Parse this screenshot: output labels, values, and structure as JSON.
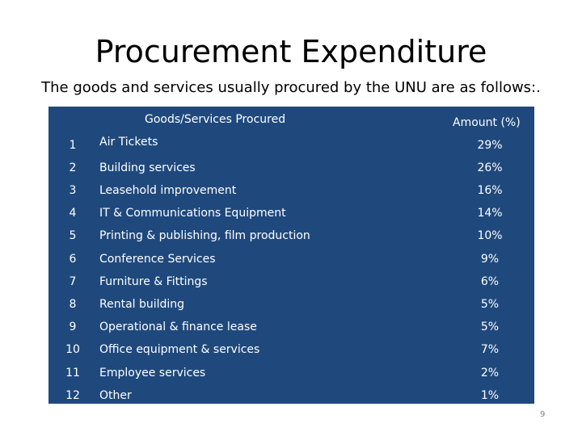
{
  "slide": {
    "title": "Procurement Expenditure",
    "subtitle": "The goods and services usually procured by the UNU are as follows:.",
    "page_number": "9"
  },
  "table": {
    "header_goods": "Goods/Services Procured",
    "header_amount": "Amount (%)",
    "rows": [
      {
        "num": "1",
        "item": "Air Tickets",
        "amount": "29%"
      },
      {
        "num": "2",
        "item": "Building services",
        "amount": "26%"
      },
      {
        "num": "3",
        "item": "Leasehold improvement",
        "amount": "16%"
      },
      {
        "num": "4",
        "item": "IT & Communications Equipment",
        "amount": "14%"
      },
      {
        "num": "5",
        "item": "Printing & publishing, film production",
        "amount": "10%"
      },
      {
        "num": "6",
        "item": "Conference Services",
        "amount": "9%"
      },
      {
        "num": "7",
        "item": "Furniture & Fittings",
        "amount": "6%"
      },
      {
        "num": "8",
        "item": "Rental building",
        "amount": "5%"
      },
      {
        "num": "9",
        "item": "Operational & finance lease",
        "amount": "5%"
      },
      {
        "num": "10",
        "item": "Office equipment & services",
        "amount": "7%"
      },
      {
        "num": "11",
        "item": "Employee services",
        "amount": "2%"
      },
      {
        "num": "12",
        "item": "Other",
        "amount": "1%"
      }
    ]
  },
  "colors": {
    "table_background": "#1f497d",
    "table_text": "#ffffff",
    "page_number": "#7f7f7f"
  }
}
